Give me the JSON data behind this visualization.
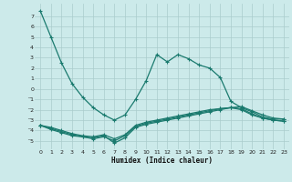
{
  "xlabel": "Humidex (Indice chaleur)",
  "bg_color": "#cceaea",
  "grid_color": "#aacccc",
  "line_color": "#1a7a6e",
  "xlim": [
    -0.5,
    23.5
  ],
  "ylim": [
    -5.8,
    8.2
  ],
  "xticks": [
    0,
    1,
    2,
    3,
    4,
    5,
    6,
    7,
    8,
    9,
    10,
    11,
    12,
    13,
    14,
    15,
    16,
    17,
    18,
    19,
    20,
    21,
    22,
    23
  ],
  "yticks": [
    -5,
    -4,
    -3,
    -2,
    -1,
    0,
    1,
    2,
    3,
    4,
    5,
    6,
    7
  ],
  "curve1_x": [
    0,
    1,
    2,
    3,
    4,
    5,
    6,
    7,
    8,
    9,
    10,
    11,
    12,
    13,
    14,
    15,
    16,
    17,
    18,
    19,
    20,
    21,
    22,
    23
  ],
  "curve1_y": [
    7.5,
    5.0,
    2.5,
    0.5,
    -0.8,
    -1.8,
    -2.5,
    -3.0,
    -2.5,
    -1.0,
    0.8,
    3.3,
    2.6,
    3.3,
    2.9,
    2.3,
    2.0,
    1.1,
    -1.2,
    -1.8,
    -2.2,
    -2.7,
    -2.9,
    -2.9
  ],
  "curve2_x": [
    0,
    1,
    2,
    3,
    4,
    5,
    6,
    7,
    8,
    9,
    10,
    11,
    12,
    13,
    14,
    15,
    16,
    17,
    18,
    19,
    20,
    21,
    22,
    23
  ],
  "curve2_y": [
    -3.5,
    -3.8,
    -4.1,
    -4.4,
    -4.6,
    -4.7,
    -4.5,
    -5.2,
    -4.7,
    -3.7,
    -3.4,
    -3.2,
    -3.0,
    -2.8,
    -2.6,
    -2.4,
    -2.2,
    -2.0,
    -1.8,
    -1.7,
    -2.1,
    -2.5,
    -2.8,
    -2.9
  ],
  "curve3_x": [
    0,
    1,
    2,
    3,
    4,
    5,
    6,
    7,
    8,
    9,
    10,
    11,
    12,
    13,
    14,
    15,
    16,
    17,
    18,
    19,
    20,
    21,
    22,
    23
  ],
  "curve3_y": [
    -3.5,
    -3.9,
    -4.2,
    -4.5,
    -4.6,
    -4.8,
    -4.6,
    -5.0,
    -4.5,
    -3.6,
    -3.3,
    -3.1,
    -2.9,
    -2.7,
    -2.5,
    -2.3,
    -2.1,
    -1.9,
    -1.8,
    -1.9,
    -2.4,
    -2.8,
    -3.0,
    -3.1
  ],
  "curve4_x": [
    0,
    1,
    2,
    3,
    4,
    5,
    6,
    7,
    8,
    9,
    10,
    11,
    12,
    13,
    14,
    15,
    16,
    17,
    18,
    19,
    20,
    21,
    22,
    23
  ],
  "curve4_y": [
    -3.5,
    -3.7,
    -4.0,
    -4.3,
    -4.5,
    -4.6,
    -4.4,
    -4.8,
    -4.4,
    -3.5,
    -3.2,
    -3.0,
    -2.8,
    -2.6,
    -2.4,
    -2.2,
    -2.0,
    -1.9,
    -1.8,
    -2.0,
    -2.5,
    -2.8,
    -3.0,
    -3.1
  ]
}
